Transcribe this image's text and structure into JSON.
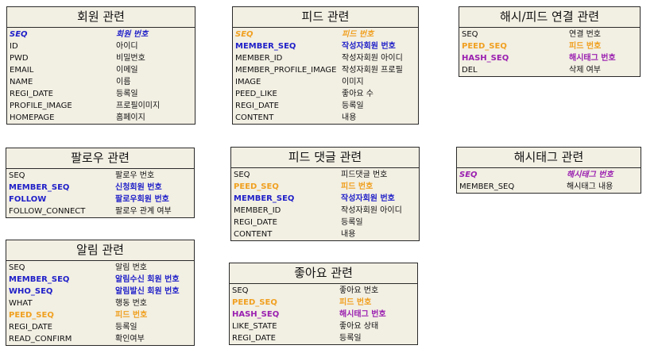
{
  "tables": [
    {
      "id": "member",
      "title": "회원 관련",
      "rows": [
        {
          "field": "SEQ",
          "desc": "회원 번호",
          "role": "pk",
          "color": "#1f1fc8"
        },
        {
          "field": "ID",
          "desc": "아이디"
        },
        {
          "field": "PWD",
          "desc": "비밀번호"
        },
        {
          "field": "EMAIL",
          "desc": "이메일"
        },
        {
          "field": "NAME",
          "desc": "이름"
        },
        {
          "field": "REGI_DATE",
          "desc": "등록일"
        },
        {
          "field": "PROFILE_IMAGE",
          "desc": "프로필이미지"
        },
        {
          "field": "HOMEPAGE",
          "desc": "홈페이지"
        }
      ]
    },
    {
      "id": "feed",
      "title": "피드 관련",
      "rows": [
        {
          "field": "SEQ",
          "desc": "피드 번호",
          "role": "pk",
          "color": "#f0a020"
        },
        {
          "field": "MEMBER_SEQ",
          "desc": "작성자회원 번호",
          "role": "fk",
          "color": "#1f1fc8"
        },
        {
          "field": "MEMBER_ID",
          "desc": "작성자회원 아이디"
        },
        {
          "field": "MEMBER_PROFILE_IMAGE",
          "desc": "작성자회원 프로필"
        },
        {
          "field": "IMAGE",
          "desc": "이미지"
        },
        {
          "field": "PEED_LIKE",
          "desc": "좋아요 수"
        },
        {
          "field": "REGI_DATE",
          "desc": "등록일"
        },
        {
          "field": "CONTENT",
          "desc": "내용"
        }
      ]
    },
    {
      "id": "hash-feed",
      "title": "해시/피드 연결 관련",
      "rows": [
        {
          "field": "SEQ",
          "desc": "연결 번호"
        },
        {
          "field": "PEED_SEQ",
          "desc": "피드 번호",
          "role": "fk",
          "color": "#f0a020"
        },
        {
          "field": "HASH_SEQ",
          "desc": "해시태그 번호",
          "role": "fk",
          "color": "#9a1fb0"
        },
        {
          "field": "DEL",
          "desc": "삭제 여부"
        }
      ]
    },
    {
      "id": "follow",
      "title": "팔로우 관련",
      "rows": [
        {
          "field": "SEQ",
          "desc": "팔로우 번호"
        },
        {
          "field": "MEMBER_SEQ",
          "desc": "신청회원 번호",
          "role": "fk",
          "color": "#1f1fc8"
        },
        {
          "field": "FOLLOW",
          "desc": "팔로우회원 번호",
          "role": "fk",
          "color": "#1f1fc8"
        },
        {
          "field": "FOLLOW_CONNECT",
          "desc": "팔로우 관계 여부"
        }
      ]
    },
    {
      "id": "feed-comment",
      "title": "피드 댓글 관련",
      "rows": [
        {
          "field": "SEQ",
          "desc": "피드댓글 번호"
        },
        {
          "field": "PEED_SEQ",
          "desc": "피드 번호",
          "role": "fk",
          "color": "#f0a020"
        },
        {
          "field": "MEMBER_SEQ",
          "desc": "작성자회원 번호",
          "role": "fk",
          "color": "#1f1fc8"
        },
        {
          "field": "MEMBER_ID",
          "desc": "작성자회원 아이디"
        },
        {
          "field": "REGI_DATE",
          "desc": "등록일"
        },
        {
          "field": "CONTENT",
          "desc": "내용"
        }
      ]
    },
    {
      "id": "hashtag",
      "title": "해시태그 관련",
      "rows": [
        {
          "field": "SEQ",
          "desc": "해시태그 번호",
          "role": "pk",
          "color": "#9a1fb0"
        },
        {
          "field": "MEMBER_SEQ",
          "desc": "해시태그 내용"
        }
      ]
    },
    {
      "id": "alarm",
      "title": "알림 관련",
      "rows": [
        {
          "field": "SEQ",
          "desc": "알림 번호"
        },
        {
          "field": "MEMBER_SEQ",
          "desc": "알림수신 회원 번호",
          "role": "fk",
          "color": "#1f1fc8"
        },
        {
          "field": "WHO_SEQ",
          "desc": "알림발신 회원 번호",
          "role": "fk",
          "color": "#1f1fc8"
        },
        {
          "field": "WHAT",
          "desc": "행동 번호"
        },
        {
          "field": "PEED_SEQ",
          "desc": "피드 번호",
          "role": "fk",
          "color": "#f0a020"
        },
        {
          "field": "REGI_DATE",
          "desc": "등록일"
        },
        {
          "field": "READ_CONFIRM",
          "desc": "확인여부"
        }
      ]
    },
    {
      "id": "like",
      "title": "좋아요 관련",
      "rows": [
        {
          "field": "SEQ",
          "desc": "좋아요 번호"
        },
        {
          "field": "PEED_SEQ",
          "desc": "피드 번호",
          "role": "fk",
          "color": "#f0a020"
        },
        {
          "field": "HASH_SEQ",
          "desc": "해시태그 번호",
          "role": "fk",
          "color": "#9a1fb0"
        },
        {
          "field": "LIKE_STATE",
          "desc": "좋아요 상태"
        },
        {
          "field": "REGI_DATE",
          "desc": "등록일"
        }
      ]
    }
  ]
}
